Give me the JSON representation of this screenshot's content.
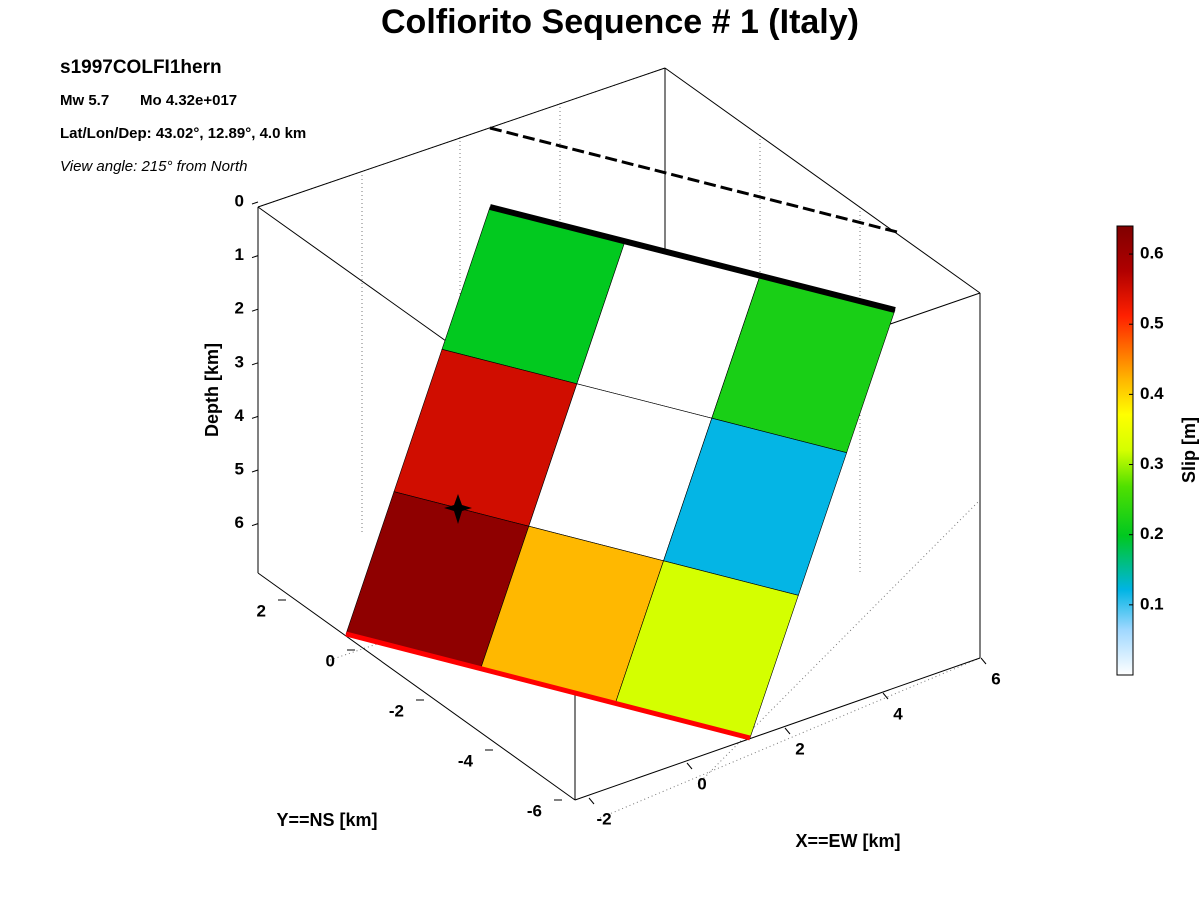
{
  "chart_data": {
    "type": "fault-slip",
    "title": "Colfiorito Sequence # 1 (Italy)",
    "event_id": "s1997COLFI1hern",
    "magnitude": "Mw 5.7",
    "moment": "Mo 4.32e+017",
    "location": "Lat/Lon/Dep: 43.02°, 12.89°, 4.0 km",
    "view_angle": "View angle: 215° from North",
    "zlabel": "Depth [km]",
    "ylabel": "Y==NS [km]",
    "xlabel": "X==EW [km]",
    "zticks": [
      0,
      1,
      2,
      3,
      4,
      5,
      6
    ],
    "yticks": [
      2,
      0,
      -2,
      -4,
      -6
    ],
    "xticks": [
      -2,
      0,
      2,
      4,
      6
    ],
    "slip": [
      [
        0.2,
        0,
        0.22
      ],
      [
        0.55,
        0,
        0.12
      ],
      [
        0.62,
        0.42,
        0.32
      ]
    ],
    "colorbar_label": "Slip [m]",
    "colorbar_lim": [
      0,
      0.64
    ],
    "colorbar_ticks": [
      0.1,
      0.2,
      0.3,
      0.4,
      0.5,
      0.6
    ]
  }
}
